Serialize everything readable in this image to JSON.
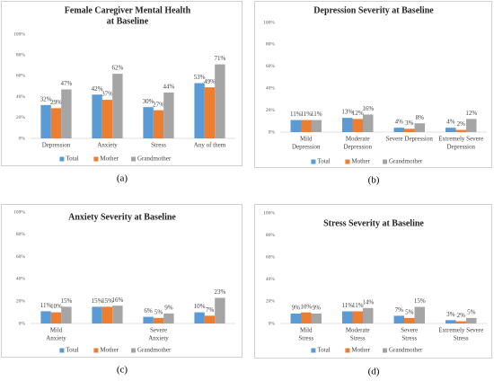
{
  "chart_data": [
    {
      "type": "bar",
      "title": [
        "Female Caregiver Mental Health",
        "at Baseline"
      ],
      "panel_label": "(a)",
      "categories": [
        [
          "Depression"
        ],
        [
          "Anxiety"
        ],
        [
          "Stress"
        ],
        [
          "Any of them"
        ]
      ],
      "series": [
        {
          "name": "Total",
          "color": "#5b9bd5",
          "values": [
            32,
            42,
            30,
            53
          ],
          "value_labels": [
            "32%",
            "42%",
            "30%",
            "53%"
          ]
        },
        {
          "name": "Mother",
          "color": "#ed7d31",
          "values": [
            29,
            37,
            27,
            49
          ],
          "value_labels": [
            "29%",
            "37%",
            "27%",
            "49%"
          ]
        },
        {
          "name": "Grandmother",
          "color": "#a5a5a5",
          "values": [
            47,
            62,
            44,
            71
          ],
          "value_labels": [
            "47%",
            "62%",
            "44%",
            "71%"
          ]
        }
      ],
      "ylim": [
        0,
        100
      ],
      "yticks": [
        {
          "value": 0,
          "label": "0%"
        },
        {
          "value": 20,
          "label": "20%"
        },
        {
          "value": 40,
          "label": "40%"
        },
        {
          "value": 60,
          "label": "60%"
        },
        {
          "value": 80,
          "label": "80%"
        },
        {
          "value": 100,
          "label": "100%"
        }
      ],
      "grid": false,
      "legend": "bottom"
    },
    {
      "type": "bar",
      "title": [
        "Depression Severity at Baseline"
      ],
      "panel_label": "(b)",
      "categories": [
        [
          "Mild",
          "Depression"
        ],
        [
          "Moderate",
          "Depression"
        ],
        [
          "Severe Depression"
        ],
        [
          "Extremely Severe",
          "Depression"
        ]
      ],
      "series": [
        {
          "name": "Total",
          "color": "#5b9bd5",
          "values": [
            11,
            13,
            4,
            4
          ],
          "value_labels": [
            "11%",
            "13%",
            "4%",
            "4%"
          ]
        },
        {
          "name": "Mother",
          "color": "#ed7d31",
          "values": [
            11,
            12,
            3,
            2
          ],
          "value_labels": [
            "11%",
            "12%",
            "3%",
            "2%"
          ]
        },
        {
          "name": "Grandmother",
          "color": "#a5a5a5",
          "values": [
            11,
            16,
            8,
            12
          ],
          "value_labels": [
            "11%",
            "16%",
            "8%",
            "12%"
          ]
        }
      ],
      "ylim": [
        0,
        100
      ],
      "yticks": [
        {
          "value": 0,
          "label": "0%"
        },
        {
          "value": 20,
          "label": "20%"
        },
        {
          "value": 40,
          "label": "40%"
        },
        {
          "value": 60,
          "label": "60%"
        },
        {
          "value": 80,
          "label": "80%"
        },
        {
          "value": 100,
          "label": "100%"
        }
      ],
      "grid": false,
      "legend": "bottom"
    },
    {
      "type": "bar",
      "title": [
        "Anxiety Severity at Baseline"
      ],
      "panel_label": "(c)",
      "categories": [
        [
          "Mild",
          "Anxiety"
        ],
        null,
        [
          "Severe",
          "Anxiety"
        ],
        null
      ],
      "series": [
        {
          "name": "Total",
          "color": "#5b9bd5",
          "values": [
            11,
            15,
            6,
            10
          ],
          "value_labels": [
            "11%",
            "15%",
            "6%",
            "10%"
          ]
        },
        {
          "name": "Mother",
          "color": "#ed7d31",
          "values": [
            10,
            15,
            5,
            7
          ],
          "value_labels": [
            "10%",
            "15%",
            "5%",
            "7%"
          ]
        },
        {
          "name": "Grandmother",
          "color": "#a5a5a5",
          "values": [
            15,
            16,
            9,
            23
          ],
          "value_labels": [
            "15%",
            "16%",
            "9%",
            "23%"
          ]
        }
      ],
      "ylim": [
        0,
        100
      ],
      "yticks": [
        {
          "value": 0,
          "label": "0%"
        },
        {
          "value": 20,
          "label": "20%"
        },
        {
          "value": 40,
          "label": "40%"
        },
        {
          "value": 60,
          "label": "60%"
        },
        {
          "value": 80,
          "label": "80%"
        },
        {
          "value": 100,
          "label": "100%"
        }
      ],
      "grid": false,
      "legend": "bottom"
    },
    {
      "type": "bar",
      "title": [
        "Stress Severity at Baseline"
      ],
      "panel_label": "(d)",
      "categories": [
        [
          "Mild",
          "Stress"
        ],
        [
          "Moderate",
          "Stress"
        ],
        [
          "Severe",
          "Stress"
        ],
        [
          "Extremely Severe",
          "Stress"
        ]
      ],
      "series": [
        {
          "name": "Total",
          "color": "#5b9bd5",
          "values": [
            9,
            11,
            7,
            3
          ],
          "value_labels": [
            "9%",
            "11%",
            "7%",
            "3%"
          ]
        },
        {
          "name": "Mother",
          "color": "#ed7d31",
          "values": [
            10,
            11,
            5,
            2
          ],
          "value_labels": [
            "10%",
            "11%",
            "5%",
            "2%"
          ]
        },
        {
          "name": "Grandmother",
          "color": "#a5a5a5",
          "values": [
            9,
            14,
            15,
            5
          ],
          "value_labels": [
            "9%",
            "14%",
            "15%",
            "5%"
          ]
        }
      ],
      "ylim": [
        0,
        100
      ],
      "yticks": [
        {
          "value": 0,
          "label": "0%"
        },
        {
          "value": 20,
          "label": "20%"
        },
        {
          "value": 40,
          "label": "40%"
        },
        {
          "value": 60,
          "label": "60%"
        },
        {
          "value": 80,
          "label": "80%"
        },
        {
          "value": 100,
          "label": "100%"
        }
      ],
      "grid": false,
      "legend": "bottom"
    }
  ]
}
